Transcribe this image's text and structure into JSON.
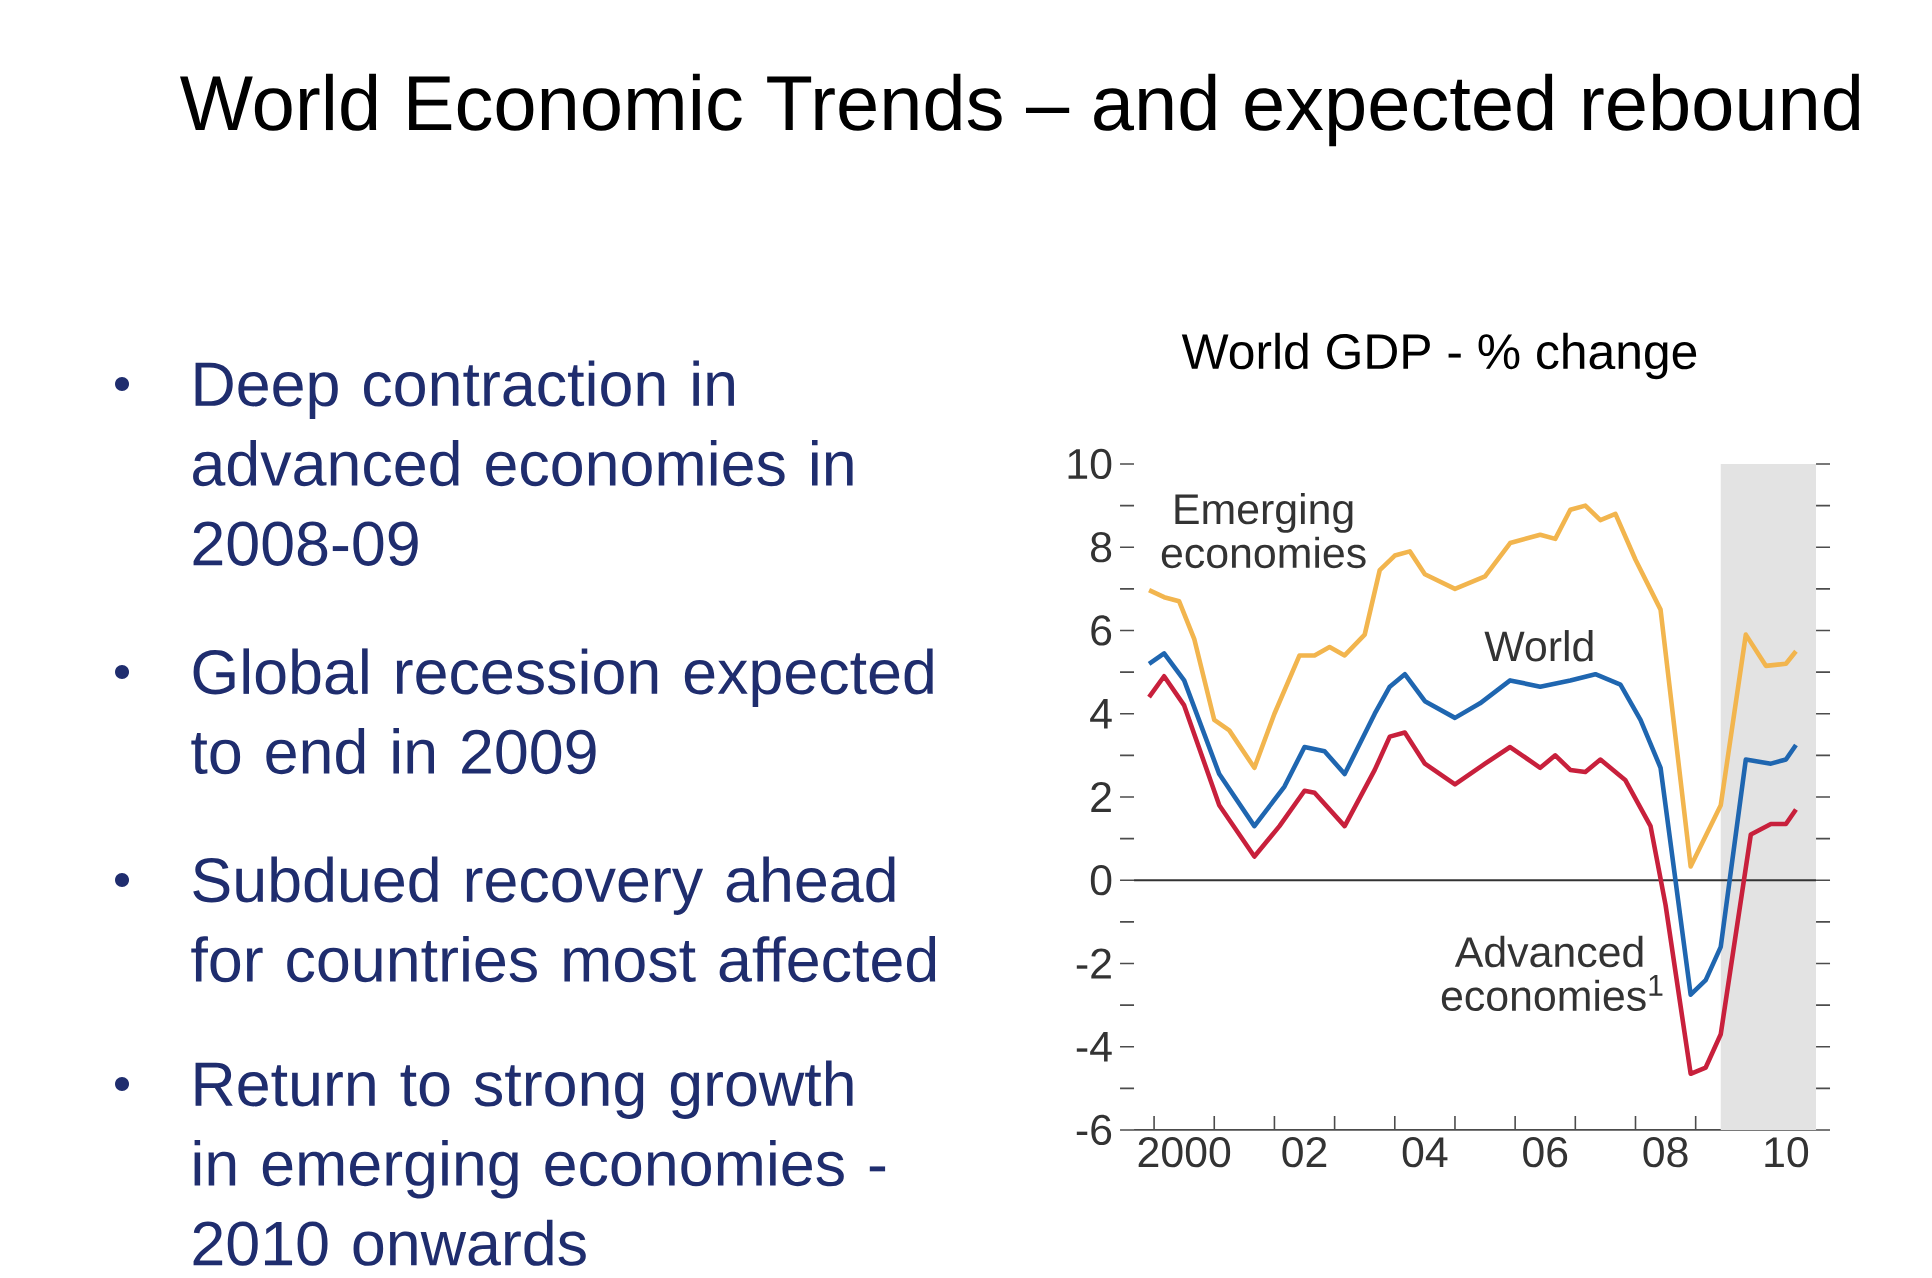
{
  "chart_data": {
    "type": "line",
    "title": "World GDP - % change",
    "annotations": [
      "World Economic  Trends – and expected rebound",
      "Deep contraction in advanced economies in 2008-09",
      "Global recession expected to end in 2009",
      "Subdued recovery ahead for countries most affected",
      "Return to strong growth in emerging economies - 2010 onwards"
    ],
    "x": [
      "1999-12",
      "2000-03",
      "2000-06",
      "2000-09",
      "2001-01",
      "2001-04",
      "2001-09",
      "2002-01",
      "2002-06",
      "2002-09",
      "2002-12",
      "2003-03",
      "2003-07",
      "2003-10",
      "2004-01",
      "2004-04",
      "2004-07",
      "2005-01",
      "2005-07",
      "2005-12",
      "2006-06",
      "2006-09",
      "2006-12",
      "2007-03",
      "2007-06",
      "2007-09",
      "2008-01",
      "2008-06",
      "2008-12",
      "2009-06",
      "2009-11",
      "2010-03",
      "2010-07",
      "2010-09"
    ],
    "series": [
      {
        "name": "Emerging economies",
        "color": "#f2b54e",
        "values": [
          6.97,
          6.8,
          6.7,
          5.8,
          3.85,
          3.6,
          2.7,
          4.0,
          5.4,
          5.4,
          5.6,
          5.4,
          5.9,
          7.45,
          7.8,
          7.9,
          7.35,
          7.0,
          7.3,
          8.1,
          8.3,
          8.2,
          8.9,
          9.0,
          8.65,
          8.8,
          7.7,
          6.5,
          0.33,
          1.8,
          5.9,
          5.15,
          5.2,
          5.5
        ]
      },
      {
        "name": "World",
        "color": "#1f66b0",
        "x": [
          "1999-12",
          "2000-03",
          "2000-07",
          "2001-02",
          "2001-09",
          "2002-03",
          "2002-07",
          "2002-11",
          "2003-03",
          "2003-09",
          "2003-12",
          "2004-03",
          "2004-07",
          "2005-01",
          "2005-06",
          "2005-12",
          "2006-06",
          "2006-12",
          "2007-05",
          "2007-10",
          "2008-02",
          "2008-06",
          "2008-12",
          "2009-03",
          "2009-06",
          "2009-11",
          "2010-04",
          "2010-07",
          "2010-09"
        ],
        "values": [
          5.2,
          5.45,
          4.8,
          2.55,
          1.3,
          2.25,
          3.2,
          3.1,
          2.55,
          4.0,
          4.65,
          4.95,
          4.3,
          3.9,
          4.25,
          4.8,
          4.65,
          4.8,
          4.95,
          4.7,
          3.85,
          2.7,
          -2.75,
          -2.4,
          -1.6,
          2.9,
          2.8,
          2.9,
          3.25
        ]
      },
      {
        "name": "Advanced economies$^{1}$",
        "color": "#c8203c",
        "x": [
          "1999-12",
          "2000-03",
          "2000-07",
          "2001-02",
          "2001-09",
          "2002-02",
          "2002-07",
          "2002-09",
          "2003-03",
          "2003-09",
          "2003-12",
          "2004-03",
          "2004-07",
          "2005-01",
          "2005-07",
          "2005-12",
          "2006-06",
          "2006-09",
          "2006-12",
          "2007-03",
          "2007-06",
          "2007-11",
          "2008-04",
          "2008-07",
          "2008-12",
          "2009-03",
          "2009-06",
          "2009-12",
          "2010-04",
          "2010-07",
          "2010-09"
        ],
        "values": [
          4.4,
          4.9,
          4.2,
          1.8,
          0.57,
          1.3,
          2.15,
          2.1,
          1.3,
          2.65,
          3.45,
          3.55,
          2.8,
          2.3,
          2.8,
          3.2,
          2.7,
          3.0,
          2.65,
          2.6,
          2.9,
          2.4,
          1.3,
          -0.6,
          -4.65,
          -4.5,
          -3.7,
          1.1,
          1.35,
          1.35,
          1.7
        ]
      }
    ],
    "xlim": [
      "1999-09",
      "2011-01"
    ],
    "xticks": [
      {
        "value": "2000-01",
        "label": null
      },
      {
        "value": "2001-01",
        "label": null
      },
      {
        "value": "2002-01",
        "label": null
      },
      {
        "value": "2003-01",
        "label": null
      },
      {
        "value": "2004-01",
        "label": null
      },
      {
        "value": "2005-01",
        "label": null
      },
      {
        "value": "2006-01",
        "label": null
      },
      {
        "value": "2007-01",
        "label": null
      },
      {
        "value": "2008-01",
        "label": null
      },
      {
        "value": "2009-01",
        "label": null
      },
      {
        "value": "2000-07",
        "label": "2000"
      },
      {
        "value": "2002-07",
        "label": "02"
      },
      {
        "value": "2004-07",
        "label": "04"
      },
      {
        "value": "2006-07",
        "label": "06"
      },
      {
        "value": "2008-07",
        "label": "08"
      },
      {
        "value": "2010-07",
        "label": "10"
      }
    ],
    "ylim": [
      -6,
      10
    ],
    "yticks": [
      -6,
      {
        "value": -5,
        "label": null
      },
      -4,
      {
        "value": -3,
        "label": null
      },
      -2,
      {
        "value": -1,
        "label": null
      },
      0,
      {
        "value": 1,
        "label": null
      },
      2,
      {
        "value": 3,
        "label": null
      },
      4,
      {
        "value": 5,
        "label": null
      },
      6,
      {
        "value": 7,
        "label": null
      },
      8,
      {
        "value": 9,
        "label": null
      },
      10
    ],
    "ref_lines": [
      {
        "axis": "y",
        "value": 0,
        "color": "#333333"
      }
    ],
    "bands": [
      {
        "axis": "x",
        "from": "2009-06",
        "to": "2011-01",
        "color": "#e3e3e3"
      }
    ],
    "grid": false,
    "legend": false,
    "marker": "none",
    "line_style": "solid"
  }
}
